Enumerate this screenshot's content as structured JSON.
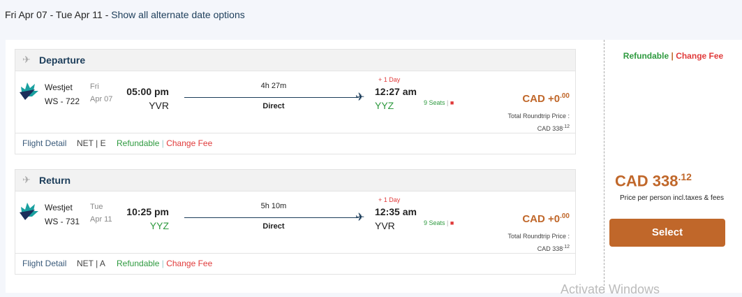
{
  "header": {
    "dates": "Fri Apr 07 - Tue Apr 11",
    "sep": " - ",
    "alt_link": "Show all alternate date options"
  },
  "legs": [
    {
      "title": "Departure",
      "airline": "Westjet",
      "flight": "WS - 722",
      "dow": "Fri",
      "date": "Apr 07",
      "dep_time": "05:00 pm",
      "dep_code": "YVR",
      "duration": "4h 27m",
      "stops": "Direct",
      "plus_day": "+ 1 Day",
      "arr_time": "12:27 am",
      "arr_code": "YYZ",
      "seats": "9 Seats",
      "price_main": "CAD +0",
      "price_dec": ".00",
      "total_label": "Total Roundtrip Price :",
      "total_main": "CAD 338",
      "total_dec": ".12",
      "flight_detail": "Flight Detail",
      "fare": "NET | E",
      "refundable": "Refundable",
      "change_fee": "Change Fee"
    },
    {
      "title": "Return",
      "airline": "Westjet",
      "flight": "WS - 731",
      "dow": "Tue",
      "date": "Apr 11",
      "dep_time": "10:25 pm",
      "dep_code": "YYZ",
      "duration": "5h 10m",
      "stops": "Direct",
      "plus_day": "+ 1 Day",
      "arr_time": "12:35 am",
      "arr_code": "YVR",
      "seats": "9 Seats",
      "price_main": "CAD +0",
      "price_dec": ".00",
      "total_label": "Total Roundtrip Price :",
      "total_main": "CAD 338",
      "total_dec": ".12",
      "flight_detail": "Flight Detail",
      "fare": "NET | A",
      "refundable": "Refundable",
      "change_fee": "Change Fee"
    }
  ],
  "summary": {
    "refundable": "Refundable",
    "change_fee": "Change Fee",
    "price_main": "CAD 338",
    "price_dec": ".12",
    "price_note": "Price per person incl.taxes & fees",
    "select": "Select"
  },
  "watermark": "Activate Windows"
}
